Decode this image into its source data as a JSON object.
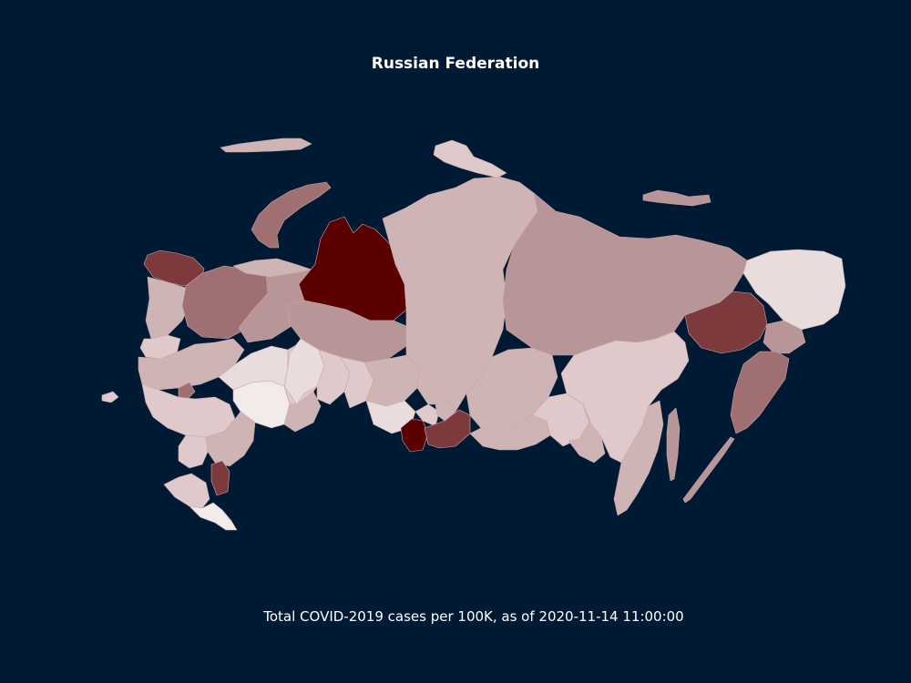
{
  "title": "Russian Federation",
  "caption": "Total COVID-2019 cases per 100K, as of 2020-11-14 11:00:00",
  "colors": {
    "background": "#001a33",
    "lightest": "#f3eaea",
    "light": "#dfc9ca",
    "medium": "#cfb4b6",
    "medium_dark": "#b89597",
    "dark": "#a06f72",
    "darker": "#7d3a3d",
    "darkest": "#5a0000"
  }
}
